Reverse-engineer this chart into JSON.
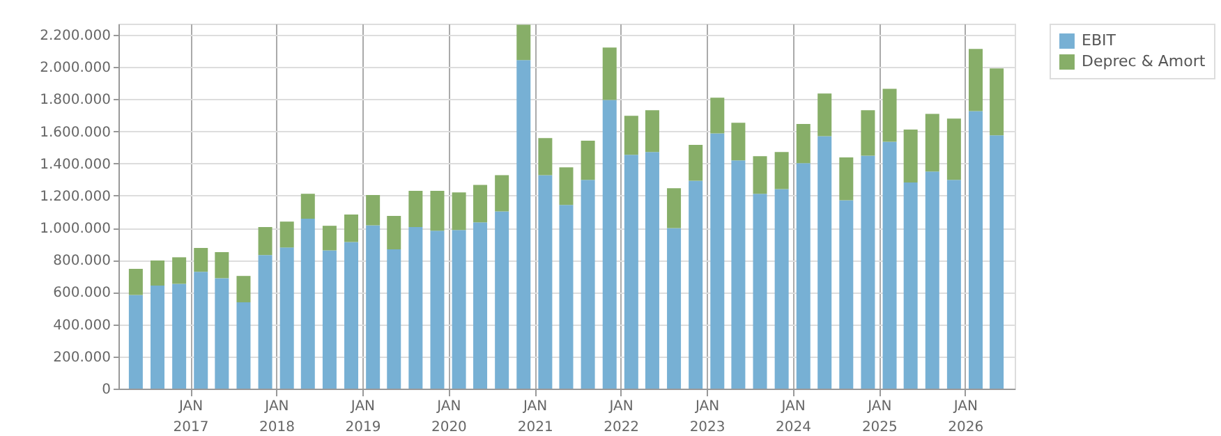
{
  "chart_data": {
    "type": "bar",
    "stacked": true,
    "grid": true,
    "legend": "top right",
    "x": [
      "2016-05-15",
      "2016-08-15",
      "2016-11-15",
      "2017-02-15",
      "2017-05-15",
      "2017-08-15",
      "2017-11-15",
      "2018-02-15",
      "2018-05-15",
      "2018-08-15",
      "2018-11-15",
      "2019-02-15",
      "2019-05-15",
      "2019-08-15",
      "2019-11-15",
      "2020-02-15",
      "2020-05-15",
      "2020-08-15",
      "2020-11-15",
      "2021-02-15",
      "2021-05-15",
      "2021-08-15",
      "2021-11-15",
      "2022-02-15",
      "2022-05-15",
      "2022-08-15",
      "2022-11-15",
      "2023-02-15",
      "2023-05-15",
      "2023-08-15",
      "2023-11-15",
      "2024-02-15",
      "2024-05-15",
      "2024-08-15",
      "2024-11-15",
      "2025-02-15",
      "2025-05-15",
      "2025-08-15",
      "2025-11-15",
      "2026-02-15",
      "2026-05-15"
    ],
    "xlim": [
      "2016-04-01",
      "2026-07-01"
    ],
    "xticks": [
      {
        "value": "2017-01-01",
        "label": "JAN 2017"
      },
      {
        "value": "2018-01-01",
        "label": "JAN 2018"
      },
      {
        "value": "2019-01-01",
        "label": "JAN 2019"
      },
      {
        "value": "2020-01-01",
        "label": "JAN 2020"
      },
      {
        "value": "2021-01-01",
        "label": "JAN 2021"
      },
      {
        "value": "2022-01-01",
        "label": "JAN 2022"
      },
      {
        "value": "2023-01-01",
        "label": "JAN 2023"
      },
      {
        "value": "2024-01-01",
        "label": "JAN 2024"
      },
      {
        "value": "2025-01-01",
        "label": "JAN 2025"
      },
      {
        "value": "2026-01-01",
        "label": "JAN 2026"
      }
    ],
    "ylim": [
      0,
      2270000
    ],
    "yticks": [
      0,
      {
        "value": 200000,
        "label": "200.000"
      },
      {
        "value": 400000,
        "label": "400.000"
      },
      {
        "value": 600000,
        "label": "600.000"
      },
      {
        "value": 800000,
        "label": "800.000"
      },
      {
        "value": 1000000,
        "label": "1.000.000"
      },
      {
        "value": 1200000,
        "label": "1.200.000"
      },
      {
        "value": 1400000,
        "label": "1.400.000"
      },
      {
        "value": 1600000,
        "label": "1.600.000"
      },
      {
        "value": 1800000,
        "label": "1.800.000"
      },
      {
        "value": 2000000,
        "label": "2.000.000"
      },
      {
        "value": 2200000,
        "label": "2.200.000"
      }
    ],
    "series": [
      {
        "name": "EBIT",
        "color": "#77b0d4",
        "values": [
          583000,
          641000,
          652000,
          727000,
          687000,
          537000,
          831000,
          878000,
          1057000,
          860000,
          912000,
          1016000,
          866000,
          1005000,
          982000,
          987000,
          1034000,
          1103000,
          2044000,
          1328000,
          1143000,
          1299000,
          1796000,
          1455000,
          1472000,
          999000,
          1293000,
          1588000,
          1420000,
          1212000,
          1241000,
          1403000,
          1570000,
          1172000,
          1449000,
          1536000,
          1282000,
          1351000,
          1299000,
          1726000,
          1576000
        ]
      },
      {
        "name": "Deprec & Amort",
        "color": "#87ae68",
        "values": [
          162000,
          156000,
          165000,
          148000,
          162000,
          164000,
          174000,
          161000,
          155000,
          153000,
          171000,
          188000,
          208000,
          225000,
          248000,
          234000,
          233000,
          225000,
          219000,
          231000,
          234000,
          243000,
          326000,
          242000,
          260000,
          248000,
          223000,
          222000,
          234000,
          234000,
          231000,
          243000,
          266000,
          266000,
          283000,
          329000,
          329000,
          358000,
          381000,
          387000,
          416000
        ]
      }
    ]
  }
}
